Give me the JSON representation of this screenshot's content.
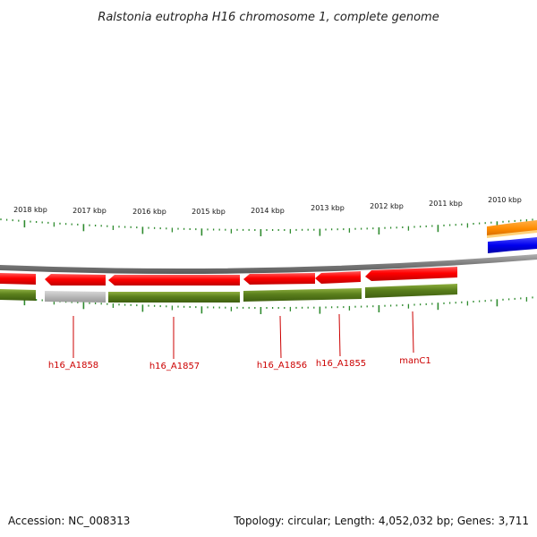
{
  "title": "Ralstonia eutropha H16 chromosome 1, complete genome",
  "footer": {
    "accession": "Accession: NC_008313",
    "summary": "Topology: circular; Length: 4,052,032 bp; Genes: 3,711"
  },
  "scale_labels": [
    "2018 kbp",
    "2017 kbp",
    "2016 kbp",
    "2015 kbp",
    "2014 kbp",
    "2013 kbp",
    "2012 kbp",
    "2011 kbp",
    "2010 kbp"
  ],
  "genes": [
    {
      "label": "h16_A1858"
    },
    {
      "label": "h16_A1857"
    },
    {
      "label": "h16_A1856"
    },
    {
      "label": "h16_A1855"
    },
    {
      "label": "manC1"
    }
  ],
  "colors": {
    "backbone": "#808080",
    "cds": "#ff0000",
    "gene": "#5a7f1c",
    "pseudo": "#b8b8b8",
    "tick": "#2e8b2e",
    "label": "#cc0000",
    "orange_feature": "#ff8c00",
    "blue_feature": "#0000ee"
  }
}
